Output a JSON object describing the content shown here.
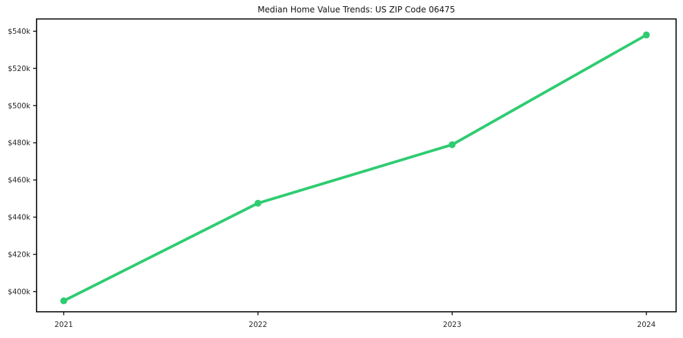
{
  "chart_data": {
    "type": "line",
    "title": "Median Home Value Trends: US ZIP Code 06475",
    "xlabel": "",
    "ylabel": "",
    "series": [
      {
        "name": "Median Home Value",
        "x": [
          2021,
          2022,
          2023,
          2024
        ],
        "values": [
          395000,
          447500,
          479000,
          538000
        ]
      }
    ],
    "x_ticks": [
      {
        "value": 2021,
        "label": "2021"
      },
      {
        "value": 2022,
        "label": "2022"
      },
      {
        "value": 2023,
        "label": "2023"
      },
      {
        "value": 2024,
        "label": "2024"
      }
    ],
    "y_ticks": [
      {
        "value": 400000,
        "label": "$400k"
      },
      {
        "value": 420000,
        "label": "$420k"
      },
      {
        "value": 440000,
        "label": "$440k"
      },
      {
        "value": 460000,
        "label": "$460k"
      },
      {
        "value": 480000,
        "label": "$480k"
      },
      {
        "value": 500000,
        "label": "$500k"
      },
      {
        "value": 520000,
        "label": "$520k"
      },
      {
        "value": 540000,
        "label": "$540k"
      }
    ],
    "xlim": [
      2020.86,
      2024.153
    ],
    "ylim": [
      389100,
      546600
    ],
    "grid": false,
    "legend_position": "none",
    "line_color": "#2ecc71",
    "marker": "circle",
    "background_color": "#ffffff",
    "axis_color": "#000000",
    "tick_label_color": "#262626",
    "title_color": "#111111"
  }
}
